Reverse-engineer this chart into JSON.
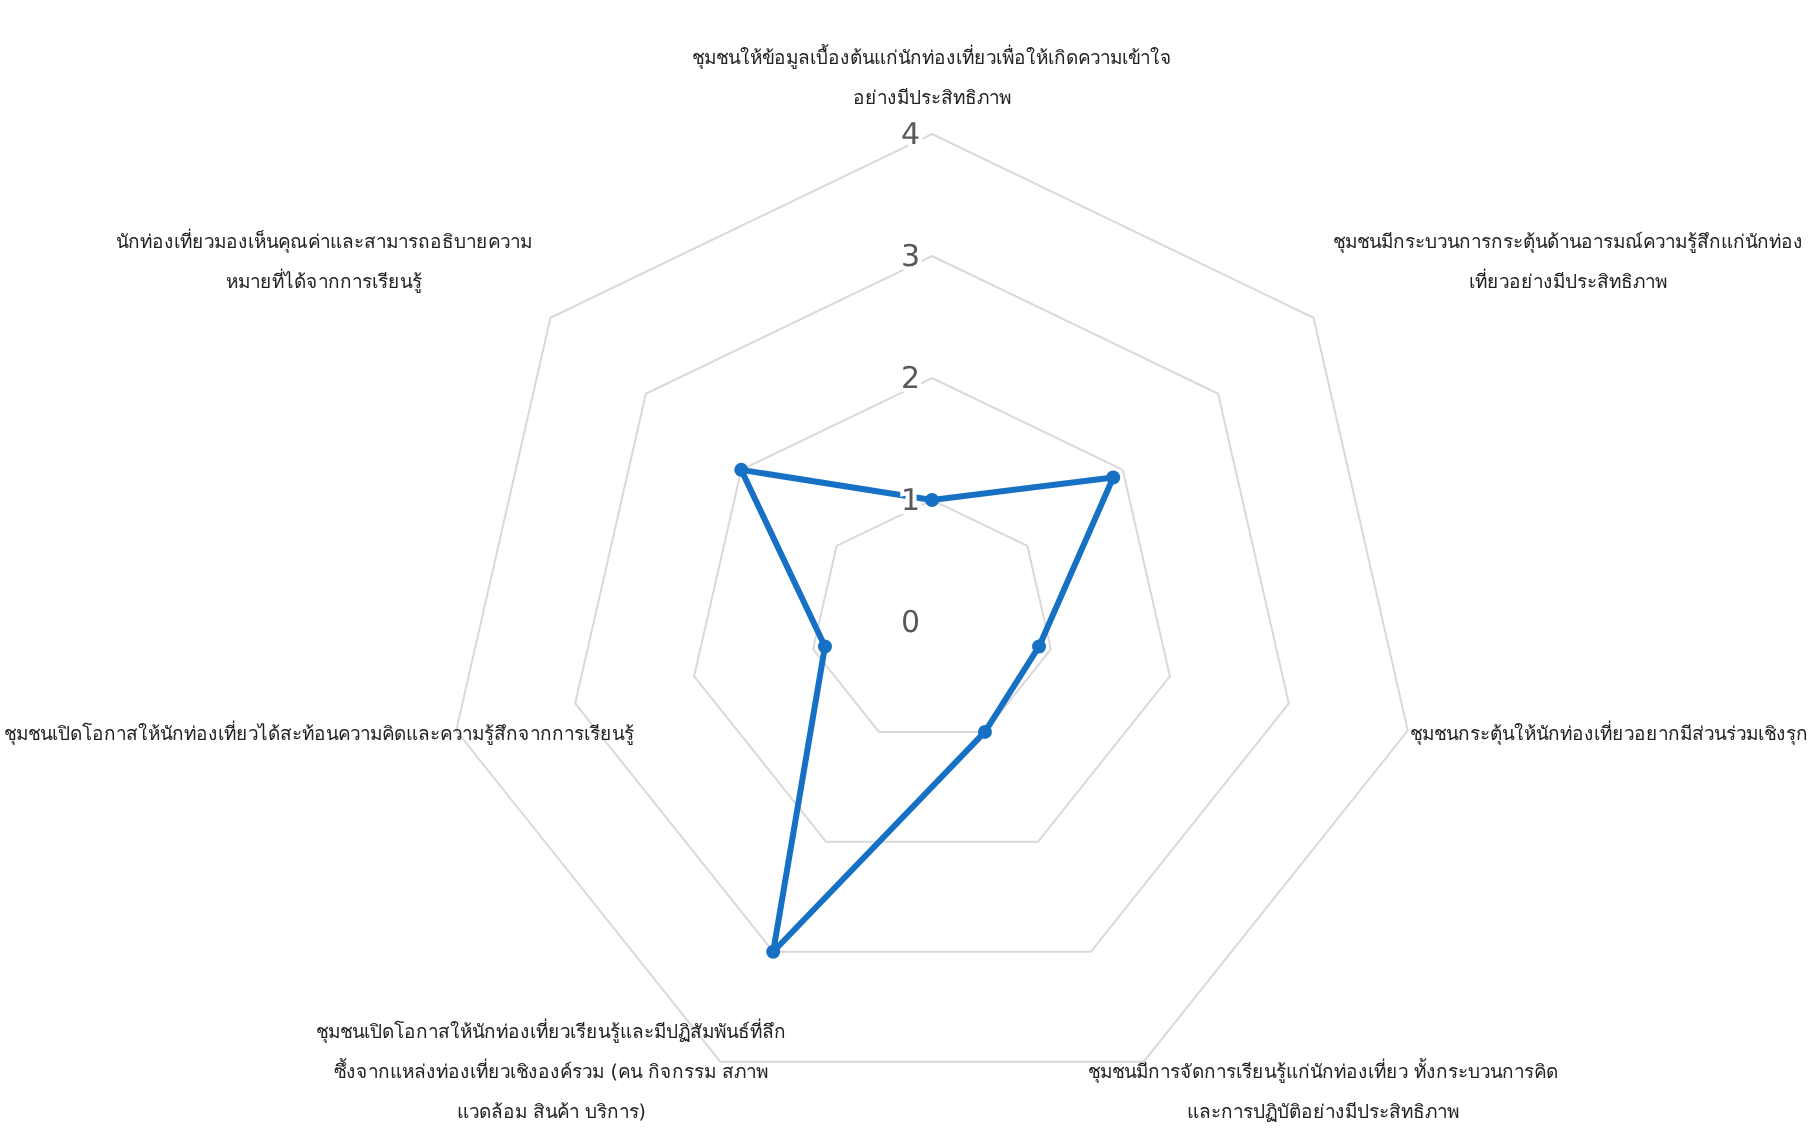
{
  "chart_data": {
    "type": "radar",
    "categories": [
      "ชุมชนให้ข้อมูลเบื้องต้นแก่นักท่องเที่ยวเพื่อให้เกิดความเข้าใจอย่างมีประสิทธิภาพ",
      "ชุมชนมีกระบวนการกระตุ้นด้านอารมณ์ความรู้สึกแก่นักท่องเที่ยวอย่างมีประสิทธิภาพ",
      "ชุมชนกระตุ้นให้นักท่องเที่ยวอยากมีส่วนร่วมเชิงรุก",
      "ชุมชนมีการจัดการเรียนรู้แก่นักท่องเที่ยว ทั้งกระบวนการคิดและการปฏิบัติอย่างมีประสิทธิภาพ",
      "ชุมชนเปิดโอกาสให้นักท่องเที่ยวเรียนรู้และมีปฏิสัมพันธ์ที่ลึกซึ้งจากแหล่งท่องเที่ยวเชิงองค์รวม (คน กิจกรรม สภาพแวดล้อม สินค้า บริการ)",
      "ชุมชนเปิดโอกาสให้นักท่องเที่ยวได้สะท้อนความคิดและความรู้สึกจากการเรียนรู้",
      "นักท่องเที่ยวมองเห็นคุณค่าและสามารถอธิบายความหมายที่ได้จากการเรียนรู้"
    ],
    "series": [
      {
        "color": "#1670c4",
        "values": [
          1,
          1.9,
          0.9,
          1,
          3,
          0.9,
          2
        ]
      }
    ],
    "ylim": [
      0,
      4
    ],
    "yticks": [
      0,
      1,
      2,
      3,
      4
    ],
    "grid": true,
    "marker": "circle",
    "line_style": "solid"
  }
}
